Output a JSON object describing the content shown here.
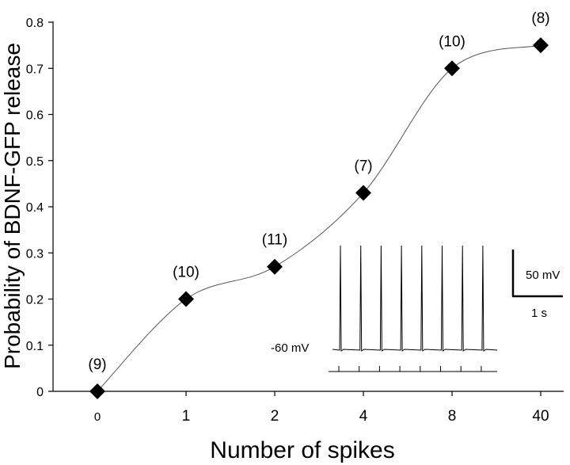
{
  "chart_data": {
    "type": "line",
    "title": "",
    "xlabel": "Number of spikes",
    "ylabel": "Probability of BDNF-GFP release",
    "categories": [
      "0",
      "1",
      "2",
      "4",
      "8",
      "40"
    ],
    "values": [
      0,
      0.2,
      0.27,
      0.43,
      0.7,
      0.75
    ],
    "n_labels": [
      "(9)",
      "(10)",
      "(11)",
      "(7)",
      "(10)",
      "(8)"
    ],
    "ylim": [
      0,
      0.8
    ],
    "yticks": [
      "0",
      "0.1",
      "0.2",
      "0.3",
      "0.4",
      "0.5",
      "0.6",
      "0.7",
      "0.8"
    ],
    "grid": false,
    "marker": "diamond",
    "inset": {
      "baseline_label": "-60 mV",
      "scalebar_v_label": "50 mV",
      "scalebar_t_label": "1 s",
      "spike_count": 8
    }
  }
}
